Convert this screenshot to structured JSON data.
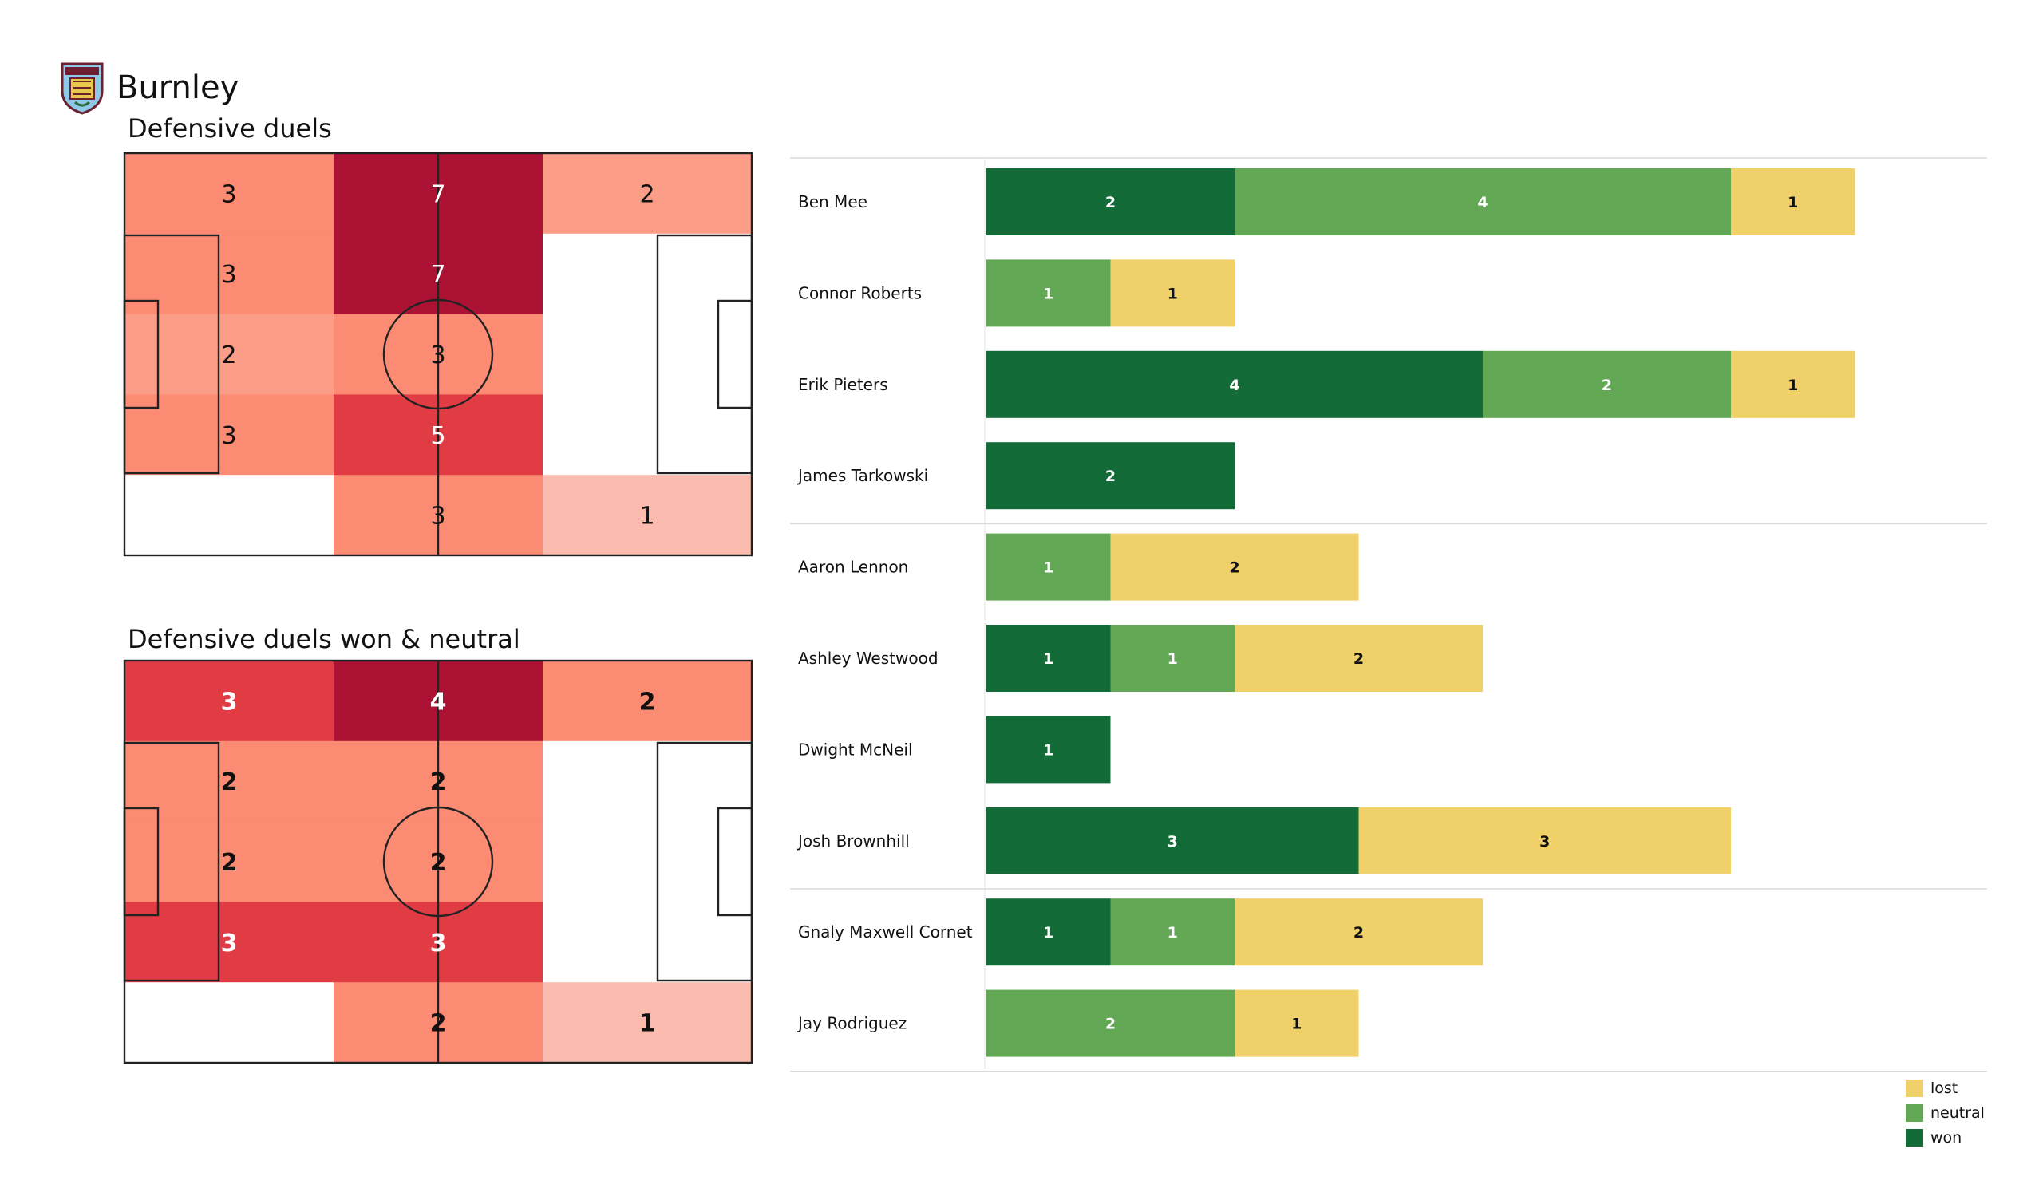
{
  "team": {
    "name": "Burnley",
    "crest": "burnley-crest-icon"
  },
  "colors": {
    "won": "#136c37",
    "neutral": "#62a754",
    "lost": "#f0d068",
    "heat": [
      "#ffffff",
      "#fcbbaf",
      "#fc9e87",
      "#fb8b72",
      "#e13c44",
      "#ab1234"
    ]
  },
  "chart_data": [
    {
      "type": "heatmap",
      "title": "Defensive duels",
      "rows": 5,
      "cols": 3,
      "values": [
        [
          3,
          7,
          2
        ],
        [
          3,
          7,
          null
        ],
        [
          2,
          3,
          null
        ],
        [
          3,
          5,
          null
        ],
        [
          null,
          3,
          1
        ]
      ],
      "color_levels": [
        [
          3,
          5,
          2
        ],
        [
          3,
          5,
          0
        ],
        [
          2,
          3,
          0
        ],
        [
          3,
          4,
          0
        ],
        [
          0,
          3,
          1
        ]
      ]
    },
    {
      "type": "heatmap",
      "title": "Defensive duels won & neutral",
      "rows": 5,
      "cols": 3,
      "values": [
        [
          3,
          4,
          2
        ],
        [
          2,
          2,
          null
        ],
        [
          2,
          2,
          null
        ],
        [
          3,
          3,
          null
        ],
        [
          null,
          2,
          1
        ]
      ],
      "color_levels": [
        [
          4,
          5,
          3
        ],
        [
          3,
          3,
          0
        ],
        [
          3,
          3,
          0
        ],
        [
          4,
          4,
          0
        ],
        [
          0,
          3,
          1
        ]
      ]
    },
    {
      "type": "bar",
      "orientation": "horizontal",
      "stacked": true,
      "series_names": [
        "won",
        "neutral",
        "lost"
      ],
      "groups": [
        [
          "Ben Mee",
          "Connor Roberts",
          "Erik Pieters",
          "James  Tarkowski"
        ],
        [
          "Aaron  Lennon",
          "Ashley Westwood",
          "Dwight McNeil",
          "Josh Brownhill"
        ],
        [
          "Gnaly Maxwell Cornet",
          "Jay Rodriguez"
        ]
      ],
      "players": [
        {
          "name": "Ben Mee",
          "won": 2,
          "neutral": 4,
          "lost": 1
        },
        {
          "name": "Connor Roberts",
          "won": 0,
          "neutral": 1,
          "lost": 1
        },
        {
          "name": "Erik Pieters",
          "won": 4,
          "neutral": 2,
          "lost": 1
        },
        {
          "name": "James  Tarkowski",
          "won": 2,
          "neutral": 0,
          "lost": 0
        },
        {
          "name": "Aaron  Lennon",
          "won": 0,
          "neutral": 1,
          "lost": 2
        },
        {
          "name": "Ashley Westwood",
          "won": 1,
          "neutral": 1,
          "lost": 2
        },
        {
          "name": "Dwight McNeil",
          "won": 1,
          "neutral": 0,
          "lost": 0
        },
        {
          "name": "Josh Brownhill",
          "won": 3,
          "neutral": 0,
          "lost": 3
        },
        {
          "name": "Gnaly Maxwell Cornet",
          "won": 1,
          "neutral": 1,
          "lost": 2
        },
        {
          "name": "Jay Rodriguez",
          "won": 0,
          "neutral": 2,
          "lost": 1
        }
      ],
      "x_range": [
        0,
        8
      ],
      "legend": {
        "position": "bottom-right",
        "entries": [
          "lost",
          "neutral",
          "won"
        ]
      }
    }
  ]
}
